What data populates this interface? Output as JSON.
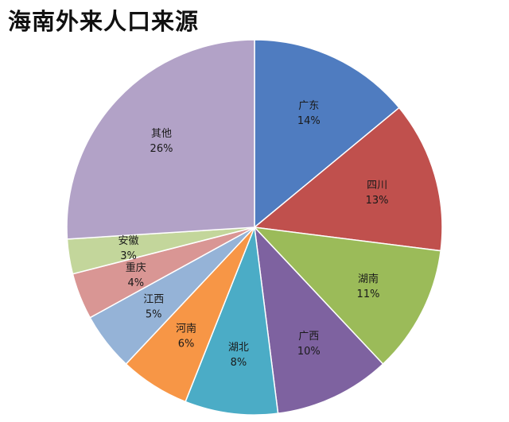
{
  "chart_data": {
    "type": "pie",
    "title": "海南外来人口来源",
    "start_angle_deg": 0,
    "direction": "clockwise",
    "slices": [
      {
        "label": "广东",
        "value": 14,
        "display": "14%",
        "color": "#4F7CC0"
      },
      {
        "label": "四川",
        "value": 13,
        "display": "13%",
        "color": "#C0504D"
      },
      {
        "label": "湖南",
        "value": 11,
        "display": "11%",
        "color": "#9BBB59"
      },
      {
        "label": "广西",
        "value": 10,
        "display": "10%",
        "color": "#7E62A0"
      },
      {
        "label": "湖北",
        "value": 8,
        "display": "8%",
        "color": "#4BACC6"
      },
      {
        "label": "河南",
        "value": 6,
        "display": "6%",
        "color": "#F79646"
      },
      {
        "label": "江西",
        "value": 5,
        "display": "5%",
        "color": "#95B3D7"
      },
      {
        "label": "重庆",
        "value": 4,
        "display": "4%",
        "color": "#D99694"
      },
      {
        "label": "安徽",
        "value": 3,
        "display": "3%",
        "color": "#C3D69B"
      },
      {
        "label": "其他",
        "value": 26,
        "display": "26%",
        "color": "#B2A2C7"
      }
    ]
  }
}
